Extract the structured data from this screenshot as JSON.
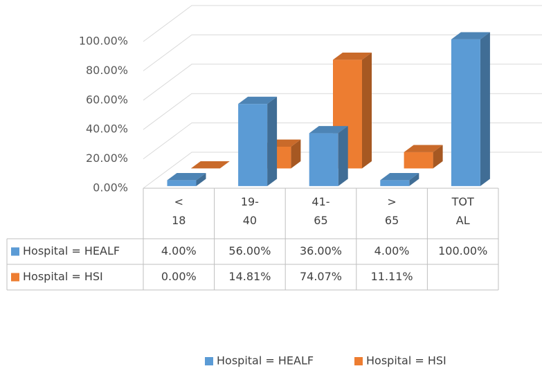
{
  "chart_data": {
    "type": "bar3d",
    "categories": [
      "< 18",
      "19-40",
      "41-65",
      "> 65",
      "TOTAL"
    ],
    "series": [
      {
        "name": "Hospital = HEALF",
        "color": "#5b9bd5",
        "values": [
          4,
          56,
          36,
          4,
          100
        ],
        "value_labels": [
          "4.00%",
          "56.00%",
          "36.00%",
          "4.00%",
          "100.00%"
        ]
      },
      {
        "name": "Hospital = HSI",
        "color": "#ed7d31",
        "values": [
          0,
          14.81,
          74.07,
          11.11,
          null
        ],
        "value_labels": [
          "0.00%",
          "14.81%",
          "74.07%",
          "11.11%",
          null
        ]
      }
    ],
    "ylim": [
      0,
      100
    ],
    "yticks": [
      {
        "value": 0,
        "label": "0.00%"
      },
      {
        "value": 20,
        "label": "20.00%"
      },
      {
        "value": 40,
        "label": "40.00%"
      },
      {
        "value": 60,
        "label": "60.00%"
      },
      {
        "value": 80,
        "label": "80.00%"
      },
      {
        "value": 100,
        "label": "100.00%"
      }
    ],
    "grid": true,
    "legend": "bottom",
    "data_table": true
  }
}
